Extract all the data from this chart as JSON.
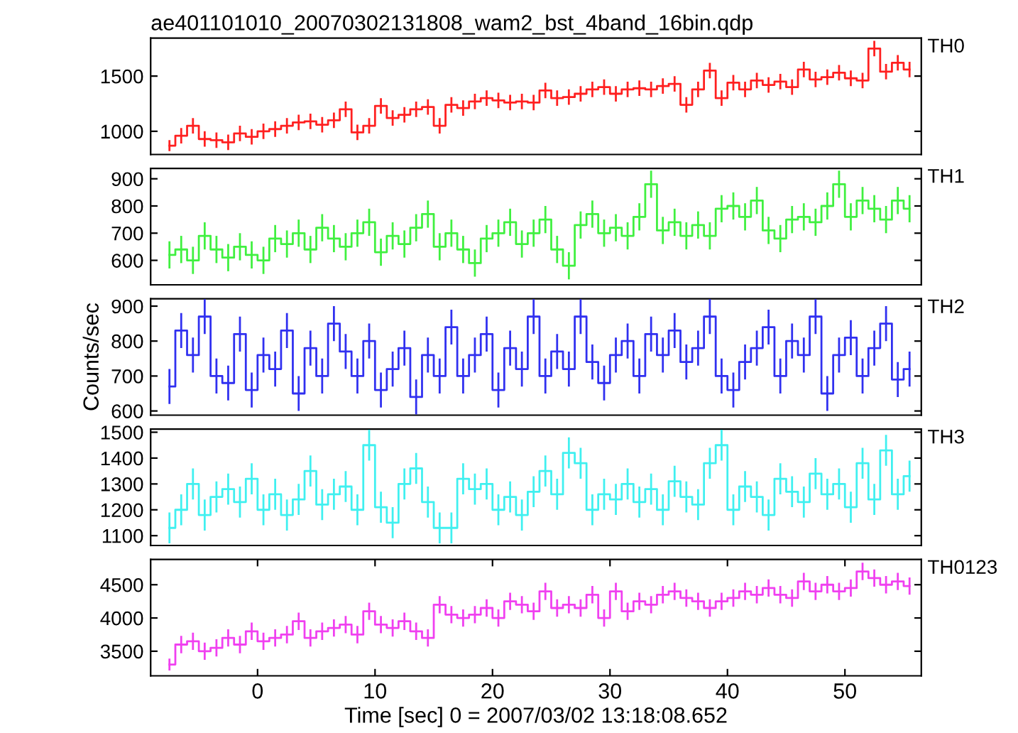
{
  "chart_data": [
    {
      "type": "step",
      "title": "ae401101010_20070302131808_wam2_bst_4band_16bin.qdp",
      "xlim": [
        -9.1,
        56.5
      ],
      "ylim": [
        790,
        1844
      ],
      "yticks": [
        1000,
        1500
      ],
      "tick_labels": "y",
      "legend": false,
      "grid": false,
      "x": [
        -7.5,
        -6.5,
        -5.5,
        -4.5,
        -3.5,
        -2.5,
        -1.5,
        -0.5,
        0.5,
        1.5,
        2.5,
        3.5,
        4.5,
        5.5,
        6.5,
        7.5,
        8.5,
        9.5,
        10.5,
        11.5,
        12.5,
        13.5,
        14.5,
        15.5,
        16.5,
        17.5,
        18.5,
        19.5,
        20.5,
        21.5,
        22.5,
        23.5,
        24.5,
        25.5,
        26.5,
        27.5,
        28.5,
        29.5,
        30.5,
        31.5,
        32.5,
        33.5,
        34.5,
        35.5,
        36.5,
        37.5,
        38.5,
        39.5,
        40.5,
        41.5,
        42.5,
        43.5,
        44.5,
        45.5,
        46.5,
        47.5,
        48.5,
        49.5,
        50.5,
        51.5,
        52.5,
        53.5,
        54.5,
        55.5
      ],
      "series": [
        {
          "name": "TH0",
          "color": "#ff2020",
          "values": [
            870,
            960,
            1050,
            930,
            920,
            900,
            980,
            950,
            1000,
            1020,
            1050,
            1080,
            1090,
            1060,
            1100,
            1200,
            990,
            1050,
            1230,
            1120,
            1150,
            1200,
            1220,
            1050,
            1240,
            1210,
            1270,
            1300,
            1280,
            1260,
            1270,
            1260,
            1370,
            1300,
            1310,
            1340,
            1380,
            1400,
            1340,
            1380,
            1390,
            1380,
            1410,
            1430,
            1240,
            1380,
            1550,
            1300,
            1440,
            1380,
            1460,
            1420,
            1450,
            1400,
            1560,
            1470,
            1490,
            1530,
            1480,
            1460,
            1750,
            1540,
            1620,
            1560
          ],
          "errors": [
            50,
            70,
            70,
            70,
            70,
            70,
            70,
            70,
            70,
            70,
            70,
            70,
            70,
            70,
            70,
            70,
            70,
            70,
            70,
            70,
            70,
            70,
            70,
            70,
            70,
            70,
            70,
            70,
            70,
            70,
            70,
            70,
            70,
            70,
            70,
            70,
            70,
            70,
            70,
            70,
            70,
            70,
            70,
            70,
            70,
            70,
            70,
            70,
            70,
            70,
            70,
            70,
            70,
            70,
            70,
            70,
            70,
            70,
            70,
            70,
            70,
            70,
            70,
            70
          ]
        }
      ]
    },
    {
      "type": "step",
      "xlim": [
        -9.1,
        56.5
      ],
      "ylim": [
        510,
        938
      ],
      "yticks": [
        600,
        700,
        800,
        900
      ],
      "tick_labels": "y",
      "legend": false,
      "grid": false,
      "x": [
        -7.5,
        -6.5,
        -5.5,
        -4.5,
        -3.5,
        -2.5,
        -1.5,
        -0.5,
        0.5,
        1.5,
        2.5,
        3.5,
        4.5,
        5.5,
        6.5,
        7.5,
        8.5,
        9.5,
        10.5,
        11.5,
        12.5,
        13.5,
        14.5,
        15.5,
        16.5,
        17.5,
        18.5,
        19.5,
        20.5,
        21.5,
        22.5,
        23.5,
        24.5,
        25.5,
        26.5,
        27.5,
        28.5,
        29.5,
        30.5,
        31.5,
        32.5,
        33.5,
        34.5,
        35.5,
        36.5,
        37.5,
        38.5,
        39.5,
        40.5,
        41.5,
        42.5,
        43.5,
        44.5,
        45.5,
        46.5,
        47.5,
        48.5,
        49.5,
        50.5,
        51.5,
        52.5,
        53.5,
        54.5,
        55.5
      ],
      "series": [
        {
          "name": "TH1",
          "color": "#40f040",
          "values": [
            620,
            640,
            600,
            690,
            640,
            610,
            650,
            620,
            600,
            680,
            660,
            700,
            640,
            720,
            680,
            650,
            700,
            740,
            630,
            690,
            660,
            720,
            770,
            650,
            700,
            640,
            590,
            680,
            700,
            740,
            660,
            700,
            750,
            640,
            580,
            730,
            770,
            700,
            720,
            690,
            760,
            880,
            710,
            740,
            690,
            730,
            690,
            790,
            800,
            760,
            820,
            710,
            680,
            750,
            760,
            740,
            800,
            880,
            760,
            820,
            790,
            750,
            820,
            790
          ],
          "errors": [
            50,
            50,
            50,
            50,
            50,
            50,
            50,
            50,
            50,
            50,
            50,
            50,
            50,
            50,
            50,
            50,
            50,
            50,
            50,
            50,
            50,
            50,
            50,
            50,
            50,
            50,
            50,
            50,
            50,
            50,
            50,
            50,
            50,
            50,
            50,
            50,
            50,
            50,
            50,
            50,
            50,
            50,
            50,
            50,
            50,
            50,
            50,
            50,
            50,
            50,
            50,
            50,
            50,
            50,
            50,
            50,
            50,
            50,
            50,
            50,
            50,
            50,
            50,
            50
          ]
        }
      ]
    },
    {
      "type": "step",
      "xlim": [
        -9.1,
        56.5
      ],
      "ylim": [
        588,
        921
      ],
      "yticks": [
        600,
        700,
        800,
        900
      ],
      "tick_labels": "y",
      "legend": false,
      "grid": false,
      "ylabel": "Counts/sec",
      "x": [
        -7.5,
        -6.5,
        -5.5,
        -4.5,
        -3.5,
        -2.5,
        -1.5,
        -0.5,
        0.5,
        1.5,
        2.5,
        3.5,
        4.5,
        5.5,
        6.5,
        7.5,
        8.5,
        9.5,
        10.5,
        11.5,
        12.5,
        13.5,
        14.5,
        15.5,
        16.5,
        17.5,
        18.5,
        19.5,
        20.5,
        21.5,
        22.5,
        23.5,
        24.5,
        25.5,
        26.5,
        27.5,
        28.5,
        29.5,
        30.5,
        31.5,
        32.5,
        33.5,
        34.5,
        35.5,
        36.5,
        37.5,
        38.5,
        39.5,
        40.5,
        41.5,
        42.5,
        43.5,
        44.5,
        45.5,
        46.5,
        47.5,
        48.5,
        49.5,
        50.5,
        51.5,
        52.5,
        53.5,
        54.5,
        55.5
      ],
      "series": [
        {
          "name": "TH2",
          "color": "#3030f0",
          "values": [
            670,
            830,
            760,
            870,
            700,
            680,
            820,
            660,
            760,
            720,
            830,
            650,
            780,
            700,
            850,
            770,
            700,
            800,
            660,
            720,
            780,
            640,
            760,
            700,
            840,
            700,
            760,
            820,
            660,
            780,
            720,
            870,
            700,
            770,
            720,
            870,
            740,
            680,
            760,
            800,
            700,
            820,
            760,
            830,
            740,
            780,
            870,
            700,
            660,
            740,
            780,
            840,
            700,
            800,
            760,
            870,
            650,
            760,
            810,
            700,
            780,
            850,
            690,
            720
          ],
          "errors": [
            50,
            50,
            50,
            50,
            50,
            50,
            50,
            50,
            50,
            50,
            50,
            50,
            50,
            50,
            50,
            50,
            50,
            50,
            50,
            50,
            50,
            50,
            50,
            50,
            50,
            50,
            50,
            50,
            50,
            50,
            50,
            50,
            50,
            50,
            50,
            50,
            50,
            50,
            50,
            50,
            50,
            50,
            50,
            50,
            50,
            50,
            50,
            50,
            50,
            50,
            50,
            50,
            50,
            50,
            50,
            50,
            50,
            50,
            50,
            50,
            50,
            50,
            50,
            50
          ]
        }
      ]
    },
    {
      "type": "step",
      "xlim": [
        -9.1,
        56.5
      ],
      "ylim": [
        1062,
        1512
      ],
      "yticks": [
        1100,
        1200,
        1300,
        1400,
        1500
      ],
      "tick_labels": "y",
      "legend": false,
      "grid": false,
      "x": [
        -7.5,
        -6.5,
        -5.5,
        -4.5,
        -3.5,
        -2.5,
        -1.5,
        -0.5,
        0.5,
        1.5,
        2.5,
        3.5,
        4.5,
        5.5,
        6.5,
        7.5,
        8.5,
        9.5,
        10.5,
        11.5,
        12.5,
        13.5,
        14.5,
        15.5,
        16.5,
        17.5,
        18.5,
        19.5,
        20.5,
        21.5,
        22.5,
        23.5,
        24.5,
        25.5,
        26.5,
        27.5,
        28.5,
        29.5,
        30.5,
        31.5,
        32.5,
        33.5,
        34.5,
        35.5,
        36.5,
        37.5,
        38.5,
        39.5,
        40.5,
        41.5,
        42.5,
        43.5,
        44.5,
        45.5,
        46.5,
        47.5,
        48.5,
        49.5,
        50.5,
        51.5,
        52.5,
        53.5,
        54.5,
        55.5
      ],
      "series": [
        {
          "name": "TH3",
          "color": "#40f0f0",
          "values": [
            1130,
            1200,
            1300,
            1180,
            1250,
            1280,
            1230,
            1320,
            1200,
            1260,
            1180,
            1240,
            1350,
            1220,
            1260,
            1290,
            1200,
            1450,
            1210,
            1150,
            1300,
            1360,
            1230,
            1130,
            1130,
            1320,
            1280,
            1300,
            1200,
            1250,
            1180,
            1270,
            1350,
            1260,
            1420,
            1380,
            1200,
            1260,
            1240,
            1300,
            1230,
            1280,
            1200,
            1310,
            1250,
            1220,
            1380,
            1450,
            1200,
            1290,
            1250,
            1180,
            1320,
            1270,
            1230,
            1340,
            1260,
            1300,
            1210,
            1380,
            1240,
            1430,
            1260,
            1330
          ],
          "errors": [
            60,
            60,
            60,
            60,
            60,
            60,
            60,
            60,
            60,
            60,
            60,
            60,
            60,
            60,
            60,
            60,
            60,
            60,
            60,
            60,
            60,
            60,
            60,
            60,
            60,
            60,
            60,
            60,
            60,
            60,
            60,
            60,
            60,
            60,
            60,
            60,
            60,
            60,
            60,
            60,
            60,
            60,
            60,
            60,
            60,
            60,
            60,
            60,
            60,
            60,
            60,
            60,
            60,
            60,
            60,
            60,
            60,
            60,
            60,
            60,
            60,
            60,
            60,
            60
          ]
        }
      ]
    },
    {
      "type": "step",
      "xlim": [
        -9.1,
        56.5
      ],
      "ylim": [
        3130,
        4880
      ],
      "yticks": [
        3500,
        4000,
        4500
      ],
      "xticks": [
        0,
        10,
        20,
        30,
        40,
        50
      ],
      "legend": false,
      "grid": false,
      "xlabel": "Time [sec] 0 = 2007/03/02 13:18:08.652",
      "x": [
        -7.5,
        -6.5,
        -5.5,
        -4.5,
        -3.5,
        -2.5,
        -1.5,
        -0.5,
        0.5,
        1.5,
        2.5,
        3.5,
        4.5,
        5.5,
        6.5,
        7.5,
        8.5,
        9.5,
        10.5,
        11.5,
        12.5,
        13.5,
        14.5,
        15.5,
        16.5,
        17.5,
        18.5,
        19.5,
        20.5,
        21.5,
        22.5,
        23.5,
        24.5,
        25.5,
        26.5,
        27.5,
        28.5,
        29.5,
        30.5,
        31.5,
        32.5,
        33.5,
        34.5,
        35.5,
        36.5,
        37.5,
        38.5,
        39.5,
        40.5,
        41.5,
        42.5,
        43.5,
        44.5,
        45.5,
        46.5,
        47.5,
        48.5,
        49.5,
        50.5,
        51.5,
        52.5,
        53.5,
        54.5,
        55.5
      ],
      "series": [
        {
          "name": "TH0123",
          "color": "#f040f0",
          "values": [
            3300,
            3600,
            3650,
            3500,
            3550,
            3700,
            3600,
            3800,
            3650,
            3700,
            3750,
            3950,
            3700,
            3800,
            3850,
            3900,
            3750,
            4100,
            3900,
            3850,
            3950,
            3800,
            3700,
            4200,
            4050,
            4000,
            4050,
            4150,
            4000,
            4250,
            4200,
            4100,
            4400,
            4150,
            4200,
            4150,
            4350,
            4000,
            4400,
            4100,
            4250,
            4200,
            4350,
            4400,
            4300,
            4250,
            4150,
            4250,
            4300,
            4400,
            4350,
            4450,
            4350,
            4300,
            4550,
            4400,
            4500,
            4400,
            4450,
            4700,
            4600,
            4500,
            4550,
            4480
          ],
          "errors": [
            90,
            130,
            130,
            130,
            130,
            130,
            130,
            130,
            130,
            130,
            130,
            130,
            130,
            130,
            130,
            130,
            130,
            130,
            130,
            130,
            130,
            130,
            130,
            130,
            130,
            130,
            130,
            130,
            130,
            130,
            130,
            130,
            130,
            130,
            130,
            130,
            130,
            130,
            130,
            130,
            130,
            130,
            130,
            130,
            130,
            130,
            130,
            130,
            130,
            130,
            130,
            130,
            130,
            130,
            130,
            130,
            130,
            130,
            130,
            130,
            130,
            130,
            130,
            130
          ]
        }
      ]
    }
  ]
}
